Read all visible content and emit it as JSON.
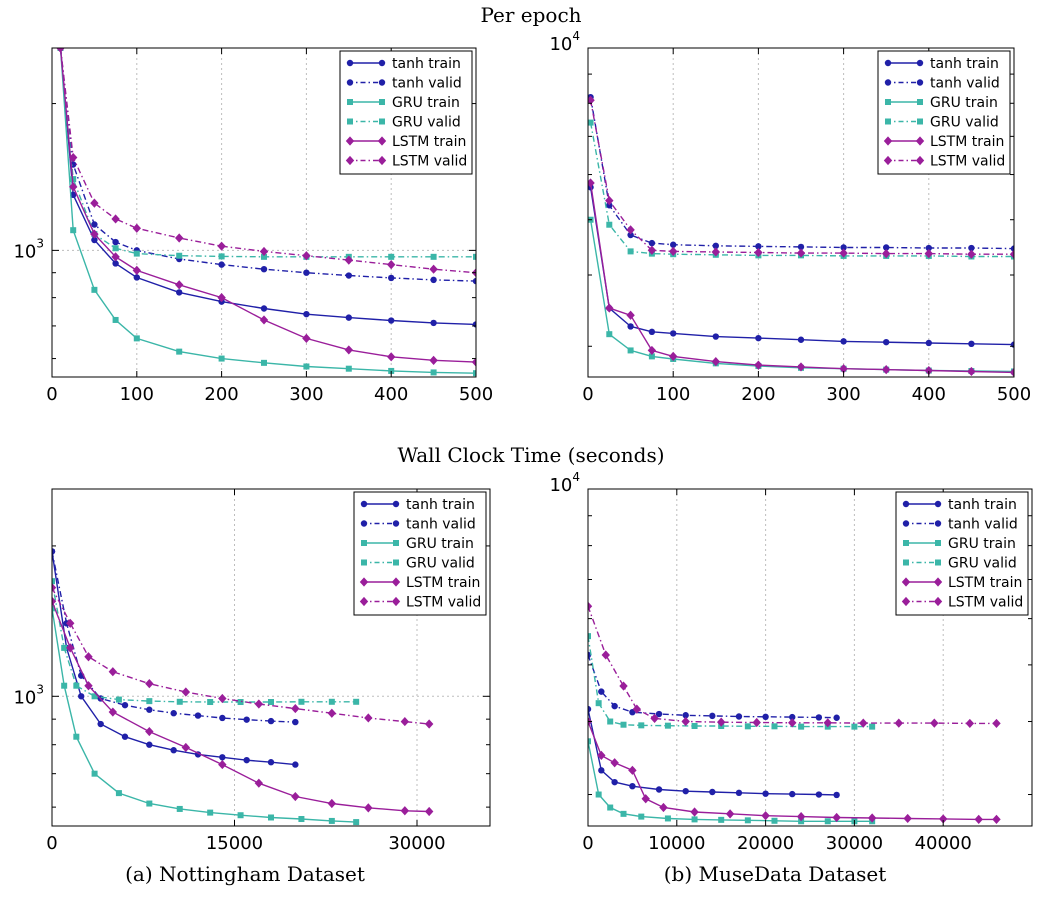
{
  "figure": {
    "row_titles": [
      "Per epoch",
      "Wall Clock Time (seconds)"
    ],
    "captions": [
      "(a) Nottingham Dataset",
      "(b) MuseData Dataset"
    ]
  },
  "colors": {
    "tanh": "#2020a8",
    "GRU": "#3bb6a8",
    "LSTM": "#9a1e9a"
  },
  "legend_entries": [
    "tanh train",
    "tanh valid",
    "GRU train",
    "GRU valid",
    "LSTM train",
    "LSTM valid"
  ],
  "chart_data": [
    {
      "type": "line",
      "title": "",
      "xlabel": "",
      "ylabel": "",
      "x_ticks": [
        0,
        100,
        200,
        300,
        400,
        500
      ],
      "xlim": [
        0,
        500
      ],
      "yscale": "log",
      "ylim": [
        550,
        2600
      ],
      "y_tick_labels": [
        {
          "value": 1000,
          "base": "10",
          "exp": "3"
        }
      ],
      "grid": true,
      "legend_position": "top-right",
      "x": [
        10,
        25,
        50,
        75,
        100,
        150,
        200,
        250,
        300,
        350,
        400,
        450,
        500
      ],
      "series": [
        {
          "name": "tanh train",
          "model": "tanh",
          "kind": "train",
          "values": [
            2600,
            1300,
            1050,
            940,
            880,
            820,
            785,
            760,
            740,
            728,
            718,
            710,
            705
          ]
        },
        {
          "name": "tanh valid",
          "model": "tanh",
          "kind": "valid",
          "values": [
            2600,
            1500,
            1130,
            1040,
            1000,
            960,
            935,
            915,
            900,
            888,
            878,
            870,
            865
          ]
        },
        {
          "name": "GRU train",
          "model": "GRU",
          "kind": "train",
          "values": [
            2600,
            1100,
            830,
            720,
            660,
            620,
            600,
            588,
            578,
            572,
            566,
            562,
            560
          ]
        },
        {
          "name": "GRU valid",
          "model": "GRU",
          "kind": "valid",
          "values": [
            2600,
            1400,
            1080,
            1010,
            985,
            975,
            972,
            970,
            970,
            970,
            970,
            970,
            970
          ]
        },
        {
          "name": "LSTM train",
          "model": "LSTM",
          "kind": "train",
          "values": [
            2600,
            1350,
            1080,
            970,
            910,
            850,
            800,
            720,
            660,
            625,
            605,
            595,
            590
          ]
        },
        {
          "name": "LSTM valid",
          "model": "LSTM",
          "kind": "valid",
          "values": [
            2600,
            1550,
            1250,
            1160,
            1110,
            1060,
            1020,
            995,
            975,
            955,
            935,
            915,
            900
          ]
        }
      ]
    },
    {
      "type": "line",
      "title": "",
      "xlabel": "",
      "ylabel": "",
      "x_ticks": [
        0,
        100,
        200,
        300,
        400,
        500
      ],
      "xlim": [
        0,
        500
      ],
      "yscale": "log",
      "ylim": [
        2650,
        10000
      ],
      "y_tick_labels": [
        {
          "value": 10000,
          "base": "10",
          "exp": "4"
        }
      ],
      "grid": true,
      "legend_position": "top-right",
      "x": [
        3,
        25,
        50,
        75,
        100,
        150,
        200,
        250,
        300,
        350,
        400,
        450,
        500
      ],
      "series": [
        {
          "name": "tanh train",
          "model": "tanh",
          "kind": "train",
          "values": [
            5700,
            3500,
            3250,
            3180,
            3160,
            3120,
            3100,
            3080,
            3060,
            3050,
            3040,
            3030,
            3020
          ]
        },
        {
          "name": "tanh valid",
          "model": "tanh",
          "kind": "valid",
          "values": [
            8200,
            5300,
            4700,
            4550,
            4520,
            4500,
            4490,
            4480,
            4470,
            4470,
            4460,
            4460,
            4450
          ]
        },
        {
          "name": "GRU train",
          "model": "GRU",
          "kind": "train",
          "values": [
            5000,
            3150,
            2950,
            2880,
            2850,
            2800,
            2770,
            2750,
            2740,
            2730,
            2720,
            2715,
            2710
          ]
        },
        {
          "name": "GRU valid",
          "model": "GRU",
          "kind": "valid",
          "values": [
            7400,
            4900,
            4400,
            4360,
            4350,
            4340,
            4330,
            4330,
            4320,
            4320,
            4320,
            4310,
            4310
          ]
        },
        {
          "name": "LSTM train",
          "model": "LSTM",
          "kind": "train",
          "values": [
            5800,
            3500,
            3400,
            2950,
            2880,
            2820,
            2780,
            2760,
            2740,
            2730,
            2720,
            2710,
            2700
          ]
        },
        {
          "name": "LSTM valid",
          "model": "LSTM",
          "kind": "valid",
          "values": [
            8100,
            5400,
            4800,
            4420,
            4400,
            4390,
            4380,
            4370,
            4370,
            4360,
            4360,
            4350,
            4350
          ]
        }
      ]
    },
    {
      "type": "line",
      "title": "",
      "xlabel": "",
      "ylabel": "",
      "x_ticks": [
        0,
        15000,
        30000
      ],
      "xlim": [
        0,
        36000
      ],
      "yscale": "log",
      "ylim": [
        550,
        2600
      ],
      "y_tick_labels": [
        {
          "value": 1000,
          "base": "10",
          "exp": "3"
        }
      ],
      "grid": true,
      "legend_position": "top-right",
      "series": [
        {
          "name": "tanh train",
          "model": "tanh",
          "kind": "train",
          "x": [
            0,
            1200,
            2400,
            4000,
            6000,
            8000,
            10000,
            12000,
            14000,
            16000,
            18000,
            20000
          ],
          "values": [
            1950,
            1250,
            1000,
            880,
            830,
            800,
            780,
            765,
            755,
            745,
            738,
            730
          ]
        },
        {
          "name": "tanh valid",
          "model": "tanh",
          "kind": "valid",
          "x": [
            0,
            1200,
            2400,
            4000,
            6000,
            8000,
            10000,
            12000,
            14000,
            16000,
            18000,
            20000
          ],
          "values": [
            1950,
            1400,
            1100,
            990,
            960,
            940,
            925,
            915,
            905,
            898,
            892,
            888
          ]
        },
        {
          "name": "GRU train",
          "model": "GRU",
          "kind": "train",
          "x": [
            0,
            1000,
            2000,
            3500,
            5500,
            8000,
            10500,
            13000,
            15500,
            18000,
            20500,
            23000,
            25000
          ],
          "values": [
            1500,
            1050,
            830,
            700,
            640,
            610,
            595,
            585,
            578,
            572,
            568,
            563,
            560
          ]
        },
        {
          "name": "GRU valid",
          "model": "GRU",
          "kind": "valid",
          "x": [
            0,
            1000,
            2000,
            3500,
            5500,
            8000,
            10500,
            13000,
            15500,
            18000,
            20500,
            23000,
            25000
          ],
          "values": [
            1700,
            1250,
            1050,
            1000,
            985,
            978,
            975,
            974,
            974,
            974,
            975,
            975,
            975
          ]
        },
        {
          "name": "LSTM train",
          "model": "LSTM",
          "kind": "train",
          "x": [
            0,
            1500,
            3000,
            5000,
            8000,
            11000,
            14000,
            17000,
            20000,
            23000,
            26000,
            29000,
            31000
          ],
          "values": [
            1550,
            1250,
            1050,
            930,
            850,
            790,
            730,
            670,
            630,
            610,
            598,
            590,
            588
          ]
        },
        {
          "name": "LSTM valid",
          "model": "LSTM",
          "kind": "valid",
          "x": [
            0,
            1500,
            3000,
            5000,
            8000,
            11000,
            14000,
            17000,
            20000,
            23000,
            26000,
            29000,
            31000
          ],
          "values": [
            1650,
            1400,
            1200,
            1120,
            1060,
            1020,
            990,
            965,
            945,
            925,
            905,
            890,
            880
          ]
        }
      ]
    },
    {
      "type": "line",
      "title": "",
      "xlabel": "",
      "ylabel": "",
      "x_ticks": [
        0,
        10000,
        20000,
        30000,
        40000
      ],
      "xlim": [
        0,
        50000
      ],
      "yscale": "log",
      "ylim": [
        2650,
        10000
      ],
      "y_tick_labels": [
        {
          "value": 10000,
          "base": "10",
          "exp": "4"
        }
      ],
      "grid": true,
      "legend_position": "top-right",
      "series": [
        {
          "name": "tanh train",
          "model": "tanh",
          "kind": "train",
          "x": [
            0,
            1500,
            3000,
            5000,
            8000,
            11000,
            14000,
            17000,
            20000,
            23000,
            26000,
            28000
          ],
          "values": [
            4200,
            3300,
            3150,
            3100,
            3060,
            3040,
            3030,
            3020,
            3010,
            3005,
            3000,
            2995
          ]
        },
        {
          "name": "tanh valid",
          "model": "tanh",
          "kind": "valid",
          "x": [
            0,
            1500,
            3000,
            5000,
            8000,
            11000,
            14000,
            17000,
            20000,
            23000,
            26000,
            28000
          ],
          "values": [
            5200,
            4500,
            4250,
            4150,
            4120,
            4100,
            4090,
            4080,
            4075,
            4070,
            4065,
            4060
          ]
        },
        {
          "name": "GRU train",
          "model": "GRU",
          "kind": "train",
          "x": [
            0,
            1200,
            2500,
            4000,
            6000,
            9000,
            12000,
            15000,
            18000,
            21000,
            24000,
            27000,
            30000,
            32000
          ],
          "values": [
            3700,
            3000,
            2850,
            2780,
            2750,
            2730,
            2720,
            2715,
            2710,
            2705,
            2700,
            2700,
            2700,
            2700
          ]
        },
        {
          "name": "GRU valid",
          "model": "GRU",
          "kind": "valid",
          "x": [
            0,
            1200,
            2500,
            4000,
            6000,
            9000,
            12000,
            15000,
            18000,
            21000,
            24000,
            27000,
            30000,
            32000
          ],
          "values": [
            5600,
            4300,
            4000,
            3950,
            3940,
            3935,
            3930,
            3930,
            3925,
            3925,
            3920,
            3920,
            3920,
            3920
          ]
        },
        {
          "name": "LSTM train",
          "model": "LSTM",
          "kind": "train",
          "x": [
            0,
            1500,
            3000,
            5000,
            6500,
            8500,
            12000,
            16000,
            20000,
            24000,
            28000,
            32000,
            36000,
            40000,
            44000,
            46000
          ],
          "values": [
            4000,
            3500,
            3400,
            3300,
            2950,
            2850,
            2800,
            2780,
            2760,
            2750,
            2740,
            2735,
            2730,
            2725,
            2720,
            2720
          ]
        },
        {
          "name": "LSTM valid",
          "model": "LSTM",
          "kind": "valid",
          "x": [
            0,
            2000,
            4000,
            5500,
            7500,
            11000,
            15000,
            19000,
            23000,
            27000,
            31000,
            35000,
            39000,
            43000,
            46000
          ],
          "values": [
            6300,
            5200,
            4600,
            4200,
            4050,
            4000,
            3990,
            3985,
            3980,
            3980,
            3975,
            3975,
            3975,
            3970,
            3970
          ]
        }
      ]
    }
  ]
}
